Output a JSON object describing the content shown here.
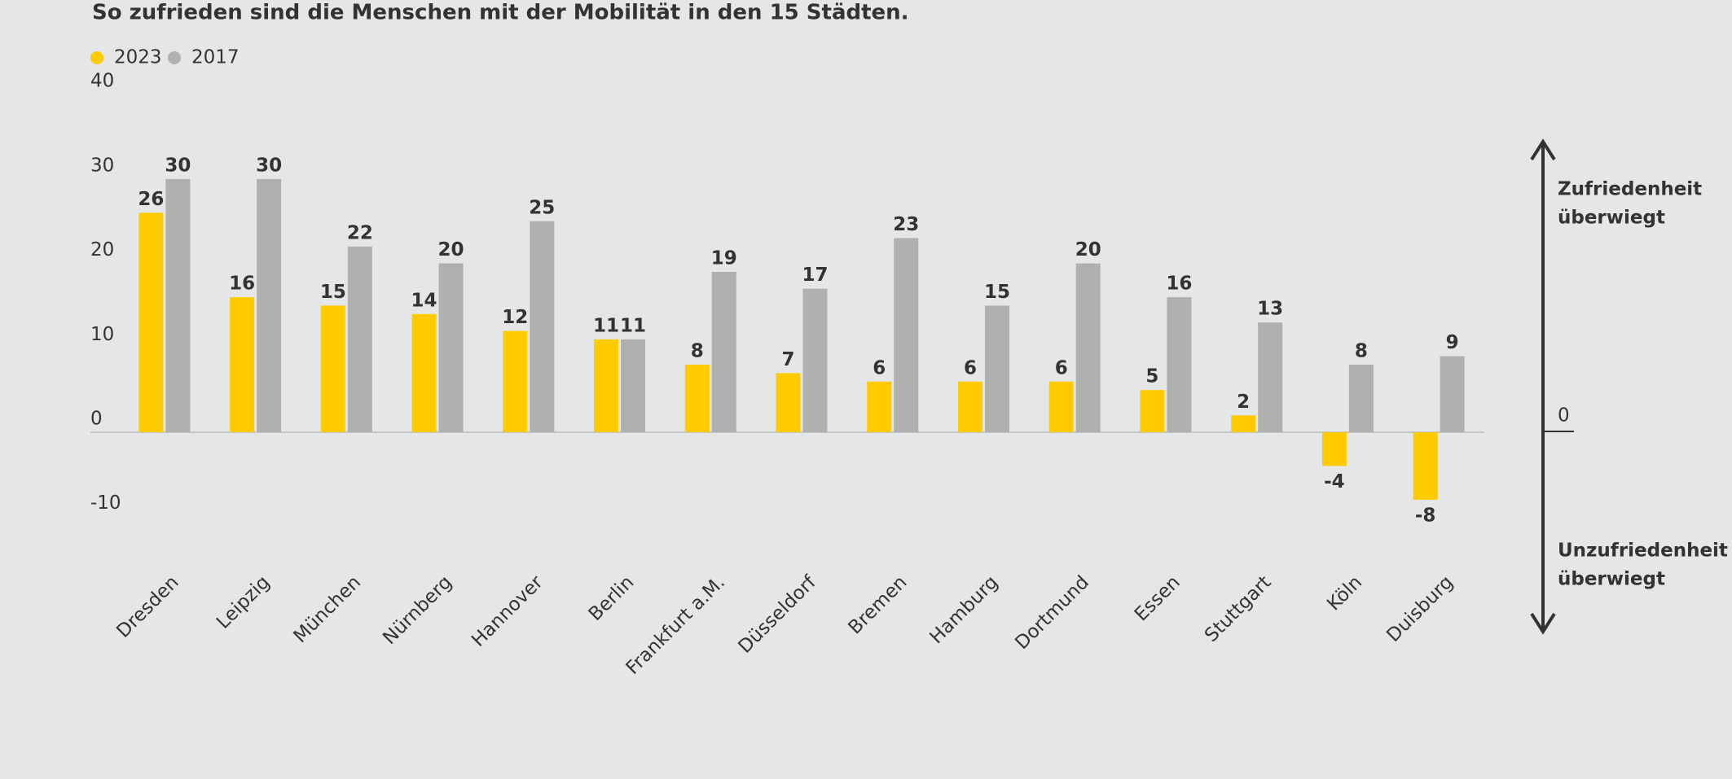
{
  "chart_data": {
    "type": "bar",
    "title": "So zufrieden sind die Menschen mit der Mobilität in den 15 Städten.",
    "categories": [
      "Dresden",
      "Leipzig",
      "München",
      "Nürnberg",
      "Hannover",
      "Berlin",
      "Frankfurt a.M.",
      "Düsseldorf",
      "Bremen",
      "Hamburg",
      "Dortmund",
      "Essen",
      "Stuttgart",
      "Köln",
      "Duisburg"
    ],
    "series": [
      {
        "name": "2023",
        "color": "#fecb00",
        "values": [
          26,
          16,
          15,
          14,
          12,
          11,
          8,
          7,
          6,
          6,
          6,
          5,
          2,
          -4,
          -8
        ]
      },
      {
        "name": "2017",
        "color": "#b0b0ae",
        "values": [
          30,
          30,
          22,
          20,
          25,
          11,
          19,
          17,
          23,
          15,
          20,
          16,
          13,
          8,
          9
        ]
      }
    ],
    "ylim": [
      -10,
      40
    ],
    "yticks": [
      -10,
      0,
      10,
      20,
      30,
      40
    ],
    "grid": false,
    "annotations": {
      "positive": [
        "Zufriedenheit",
        "überwiegt"
      ],
      "zero": "0",
      "negative": [
        "Unzufriedenheit",
        "überwiegt"
      ]
    }
  }
}
